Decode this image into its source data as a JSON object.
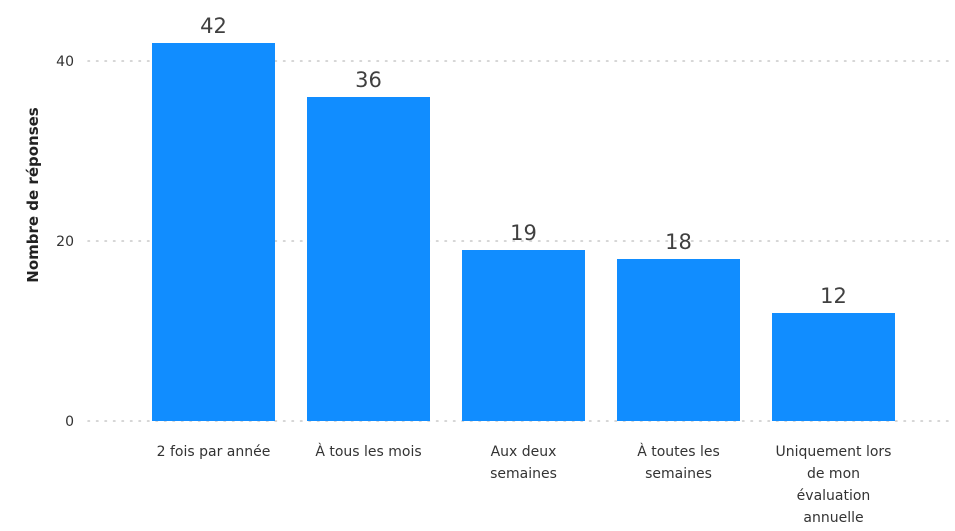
{
  "chart_data": {
    "type": "bar",
    "title": "",
    "xlabel": "",
    "ylabel": "Nombre de réponses",
    "categories": [
      "2 fois par année",
      "À tous les mois",
      "Aux deux semaines",
      "À toutes les semaines",
      "Uniquement lors de mon évaluation annuelle"
    ],
    "category_lines": [
      [
        "2 fois par année"
      ],
      [
        "À tous les mois"
      ],
      [
        "Aux deux",
        "semaines"
      ],
      [
        "À toutes les",
        "semaines"
      ],
      [
        "Uniquement lors",
        "de mon",
        "évaluation",
        "annuelle"
      ]
    ],
    "values": [
      42,
      36,
      19,
      18,
      12
    ],
    "data_labels": [
      "42",
      "36",
      "19",
      "18",
      "12"
    ],
    "yticks": [
      0,
      20,
      40
    ],
    "ylim": [
      0,
      42
    ],
    "grid": true,
    "bar_color": "#118DFF",
    "legend": "none"
  }
}
